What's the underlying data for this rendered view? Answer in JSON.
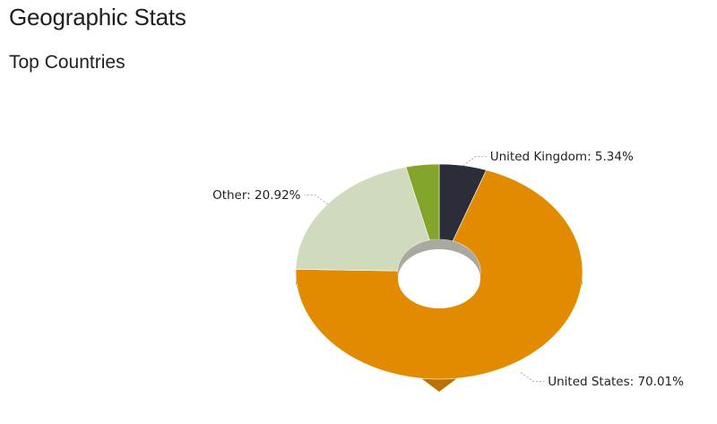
{
  "page": {
    "title": "Geographic Stats",
    "section_title": "Top Countries"
  },
  "chart_data": {
    "type": "pie",
    "donut": true,
    "three_d": true,
    "title": "",
    "slices": [
      {
        "name": "United Kingdom",
        "value": 5.34,
        "label": "United Kingdom: 5.34%",
        "color": "#2b2d38"
      },
      {
        "name": "United States",
        "value": 70.01,
        "label": "United States: 70.01%",
        "color": "#e38b00"
      },
      {
        "name": "Other",
        "value": 20.92,
        "label": "Other: 20.92%",
        "color": "#d0dabd"
      },
      {
        "name": "",
        "value": 3.73,
        "label": "",
        "color": "#84a52b"
      }
    ],
    "start_angle_deg": 0,
    "direction": "clockwise"
  }
}
